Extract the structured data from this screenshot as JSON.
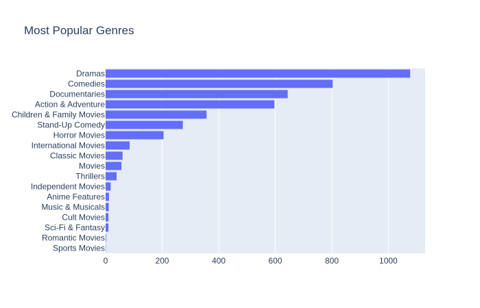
{
  "chart_data": {
    "type": "bar",
    "orientation": "horizontal",
    "title": "Most Popular Genres",
    "xlabel": "",
    "ylabel": "",
    "xlim": [
      0,
      1130
    ],
    "xticks": [
      0,
      200,
      400,
      600,
      800,
      1000
    ],
    "grid": true,
    "categories": [
      "Dramas",
      "Comedies",
      "Documentaries",
      "Action & Adventure",
      "Children & Family Movies",
      "Stand-Up Comedy",
      "Horror Movies",
      "International Movies",
      "Classic Movies",
      "Movies",
      "Thrillers",
      "Independent Movies",
      "Anime Features",
      "Music & Musicals",
      "Cult Movies",
      "Sci-Fi & Fantasy",
      "Romantic Movies",
      "Sports Movies"
    ],
    "values": [
      1077,
      803,
      644,
      597,
      357,
      273,
      205,
      85,
      60,
      56,
      39,
      18,
      12,
      11,
      10,
      10,
      2,
      1
    ]
  },
  "colors": {
    "bar": "#636efa",
    "plot_bg": "#e5ecf6",
    "grid": "#ffffff",
    "text": "#2a3f5f"
  }
}
